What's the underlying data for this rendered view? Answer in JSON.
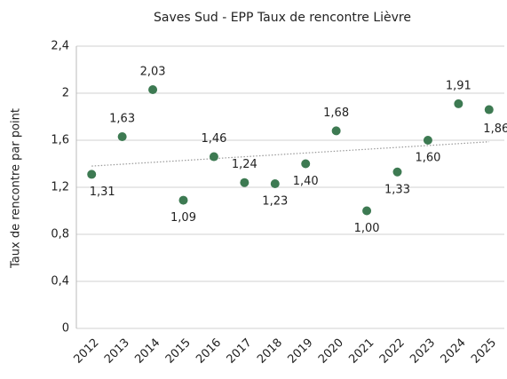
{
  "chart_data": {
    "type": "scatter",
    "title": "Saves Sud - EPP Taux de rencontre Lièvre",
    "y_label": "Taux de rencontre par point",
    "categories": [
      "2012",
      "2013",
      "2014",
      "2015",
      "2016",
      "2017",
      "2018",
      "2019",
      "2020",
      "2021",
      "2022",
      "2023",
      "2024",
      "2025"
    ],
    "values": [
      1.31,
      1.63,
      2.03,
      1.09,
      1.46,
      1.24,
      1.23,
      1.4,
      1.68,
      1.0,
      1.33,
      1.6,
      1.91,
      1.86
    ],
    "value_labels": [
      "1,31",
      "1,63",
      "2,03",
      "1,09",
      "1,46",
      "1,24",
      "1,23",
      "1,40",
      "1,68",
      "1,00",
      "1,33",
      "1,60",
      "1,91",
      "1,86"
    ],
    "color": "#3d7a52",
    "ylim": [
      0,
      2.4
    ],
    "yticks": [
      0,
      {
        "value": 0.4,
        "label": "0,4"
      },
      {
        "value": 0.8,
        "label": "0,8"
      },
      {
        "value": 1.2,
        "label": "1,2"
      },
      {
        "value": 1.6,
        "label": "1,6"
      },
      2,
      {
        "value": 2.4,
        "label": "2,4"
      }
    ],
    "grid": true,
    "trendline": true
  }
}
